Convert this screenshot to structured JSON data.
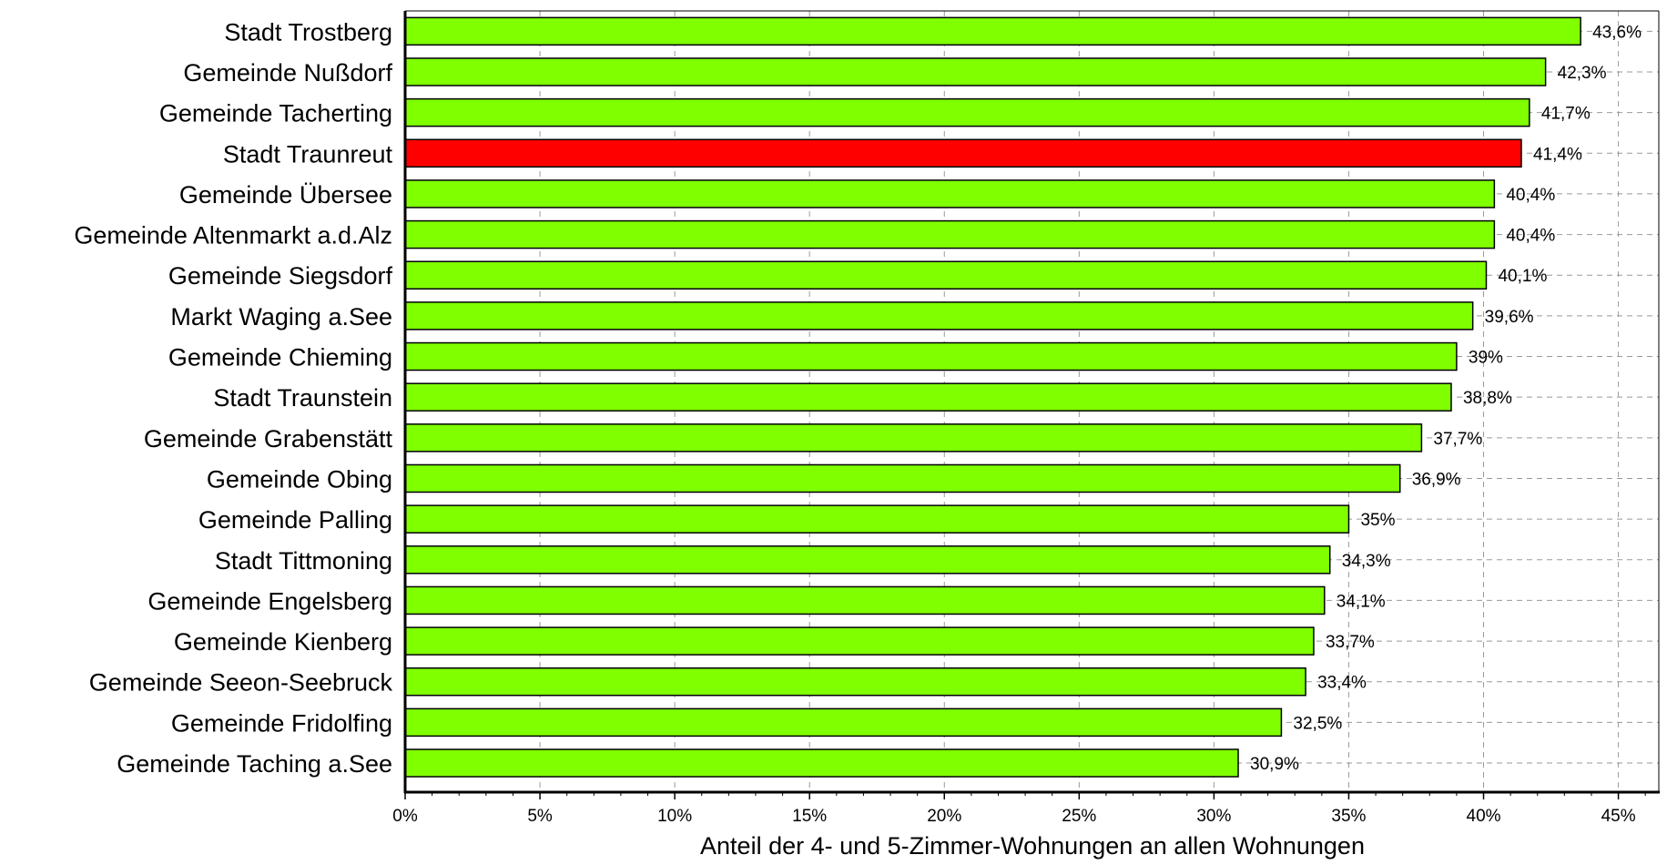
{
  "chart_data": {
    "type": "bar",
    "orientation": "horizontal",
    "categories": [
      "Stadt Trostberg",
      "Gemeinde Nußdorf",
      "Gemeinde Tacherting",
      "Stadt Traunreut",
      "Gemeinde Übersee",
      "Gemeinde Altenmarkt a.d.Alz",
      "Gemeinde Siegsdorf",
      "Markt Waging a.See",
      "Gemeinde Chieming",
      "Stadt Traunstein",
      "Gemeinde Grabenstätt",
      "Gemeinde Obing",
      "Gemeinde Palling",
      "Stadt Tittmoning",
      "Gemeinde Engelsberg",
      "Gemeinde Kienberg",
      "Gemeinde Seeon-Seebruck",
      "Gemeinde Fridolfing",
      "Gemeinde Taching a.See"
    ],
    "values": [
      43.6,
      42.3,
      41.7,
      41.4,
      40.4,
      40.4,
      40.1,
      39.6,
      39,
      38.8,
      37.7,
      36.9,
      35,
      34.3,
      34.1,
      33.7,
      33.4,
      32.5,
      30.9
    ],
    "value_labels": [
      "43,6%",
      "42,3%",
      "41,7%",
      "41,4%",
      "40,4%",
      "40,4%",
      "40,1%",
      "39,6%",
      "39%",
      "38,8%",
      "37,7%",
      "36,9%",
      "35%",
      "34,3%",
      "34,1%",
      "33,7%",
      "33,4%",
      "32,5%",
      "30,9%"
    ],
    "xlabel": "Anteil der 4- und 5-Zimmer-Wohnungen an allen Wohnungen",
    "xlim": [
      0,
      46.5
    ],
    "xticks": [
      0,
      5,
      10,
      15,
      20,
      25,
      30,
      35,
      40,
      45
    ],
    "xtick_labels": [
      "0%",
      "5%",
      "10%",
      "15%",
      "20%",
      "25%",
      "30%",
      "35%",
      "40%",
      "45%"
    ],
    "grid": "vertical dashed",
    "highlight_index": 3,
    "colors": {
      "bar": "#80ff00",
      "highlight": "#ff0000",
      "bar_border": "#000000",
      "grid": "#999999"
    }
  }
}
